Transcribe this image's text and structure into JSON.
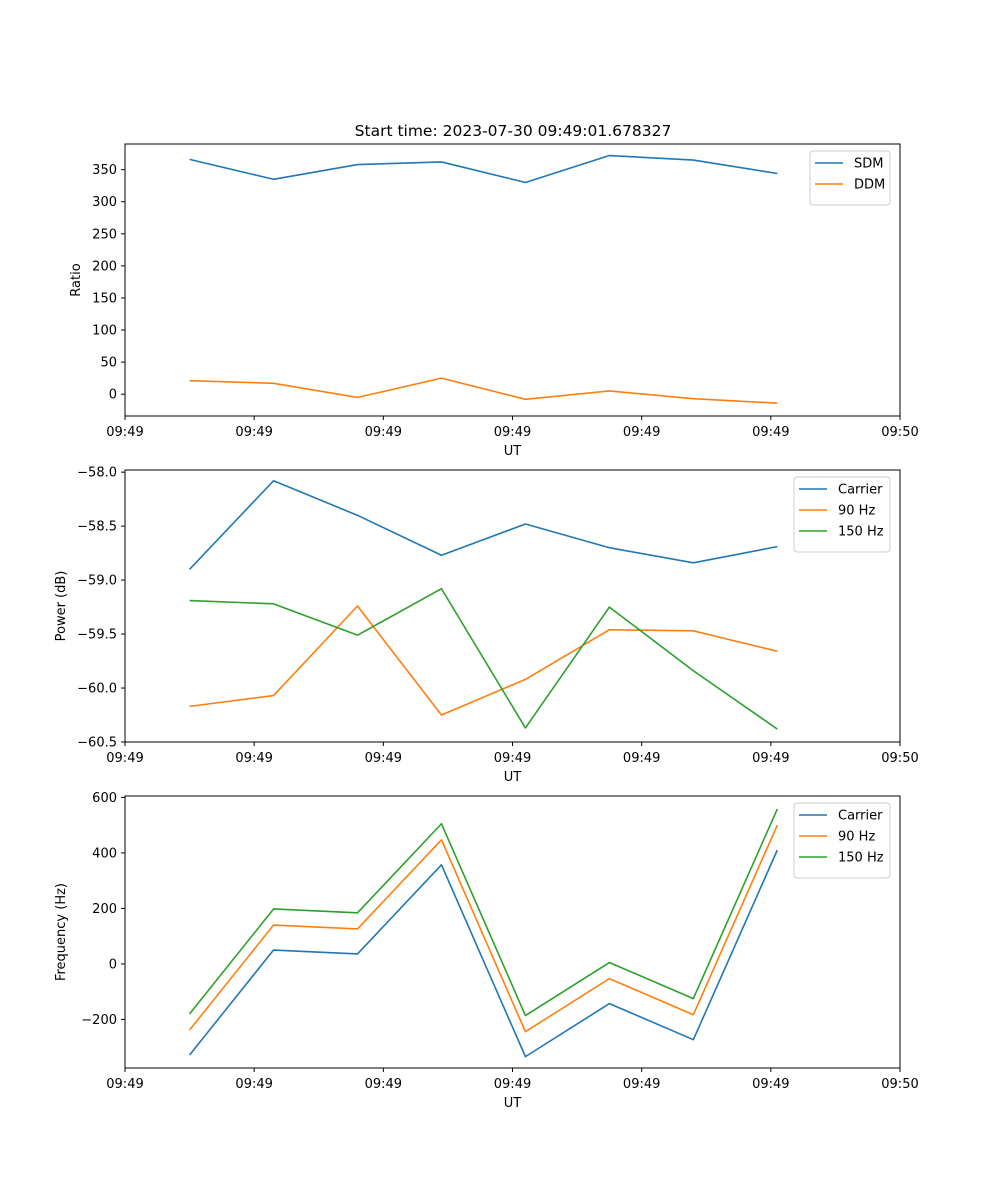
{
  "figure": {
    "title": "Start time: 2023-07-30 09:49:01.678327"
  },
  "chart_data": [
    {
      "type": "line",
      "ylabel": "Ratio",
      "xlabel": "UT",
      "xlim": [
        0,
        12
      ],
      "x": [
        1,
        2.3,
        3.6,
        4.9,
        6.2,
        7.5,
        8.8,
        10.1
      ],
      "x_ticks": [
        0,
        2,
        4,
        6,
        8,
        10,
        12
      ],
      "x_tick_labels": [
        "09:49",
        "09:49",
        "09:49",
        "09:49",
        "09:49",
        "09:49",
        "09:50"
      ],
      "ylim": [
        -34,
        390
      ],
      "y_ticks": [
        0,
        50,
        100,
        150,
        200,
        250,
        300,
        350
      ],
      "y_tick_labels": [
        "0",
        "50",
        "100",
        "150",
        "200",
        "250",
        "300",
        "350"
      ],
      "legend": "top-right",
      "series": [
        {
          "name": "SDM",
          "color": "#1f77b4",
          "values": [
            366,
            335,
            358,
            362,
            330,
            372,
            365,
            344
          ]
        },
        {
          "name": "DDM",
          "color": "#ff7f0e",
          "values": [
            21,
            17,
            -5,
            25,
            -8,
            5,
            -7,
            -14
          ]
        }
      ]
    },
    {
      "type": "line",
      "ylabel": "Power (dB)",
      "xlabel": "UT",
      "xlim": [
        0,
        12
      ],
      "x": [
        1,
        2.3,
        3.6,
        4.9,
        6.2,
        7.5,
        8.8,
        10.1
      ],
      "x_ticks": [
        0,
        2,
        4,
        6,
        8,
        10,
        12
      ],
      "x_tick_labels": [
        "09:49",
        "09:49",
        "09:49",
        "09:49",
        "09:49",
        "09:49",
        "09:50"
      ],
      "ylim": [
        -60.5,
        -57.98
      ],
      "y_ticks": [
        -60.5,
        -60.0,
        -59.5,
        -59.0,
        -58.5,
        -58.0
      ],
      "y_tick_labels": [
        "−60.5",
        "−60.0",
        "−59.5",
        "−59.0",
        "−58.5",
        "−58.0"
      ],
      "legend": "top-right",
      "series": [
        {
          "name": "Carrier",
          "color": "#1f77b4",
          "values": [
            -58.9,
            -58.08,
            -58.4,
            -58.77,
            -58.48,
            -58.7,
            -58.84,
            -58.69
          ]
        },
        {
          "name": "90 Hz",
          "color": "#ff7f0e",
          "values": [
            -60.17,
            -60.07,
            -59.24,
            -60.25,
            -59.92,
            -59.46,
            -59.47,
            -59.66
          ]
        },
        {
          "name": "150 Hz",
          "color": "#2ca02c",
          "values": [
            -59.19,
            -59.22,
            -59.51,
            -59.08,
            -60.37,
            -59.25,
            -59.84,
            -60.38
          ]
        }
      ]
    },
    {
      "type": "line",
      "ylabel": "Frequency (Hz)",
      "xlabel": "UT",
      "xlim": [
        0,
        12
      ],
      "x": [
        1,
        2.3,
        3.6,
        4.9,
        6.2,
        7.5,
        8.8,
        10.1
      ],
      "x_ticks": [
        0,
        2,
        4,
        6,
        8,
        10,
        12
      ],
      "x_tick_labels": [
        "09:49",
        "09:49",
        "09:49",
        "09:49",
        "09:49",
        "09:49",
        "09:50"
      ],
      "ylim": [
        -375,
        605
      ],
      "y_ticks": [
        -200,
        0,
        200,
        400,
        600
      ],
      "y_tick_labels": [
        "−200",
        "0",
        "200",
        "400",
        "600"
      ],
      "legend": "top-right",
      "series": [
        {
          "name": "Carrier",
          "color": "#1f77b4",
          "values": [
            -328,
            50,
            36,
            357,
            -334,
            -143,
            -273,
            410
          ]
        },
        {
          "name": "90 Hz",
          "color": "#ff7f0e",
          "values": [
            -238,
            140,
            126,
            447,
            -244,
            -53,
            -183,
            500
          ]
        },
        {
          "name": "150 Hz",
          "color": "#2ca02c",
          "values": [
            -180,
            198,
            184,
            505,
            -186,
            5,
            -125,
            558
          ]
        }
      ]
    }
  ]
}
